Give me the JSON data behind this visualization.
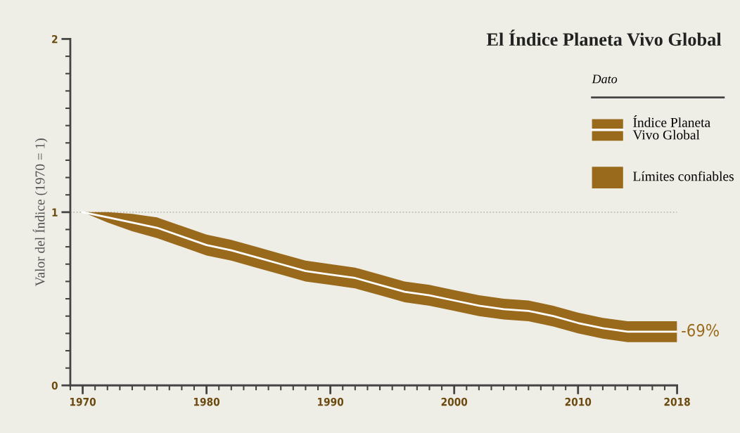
{
  "chart_data": {
    "type": "line",
    "title": "El Índice Planeta Vivo Global",
    "ylabel": "Valor del Índice (1970 = 1)",
    "legend_title": "Dato",
    "legend": "right",
    "x": [
      1970,
      1972,
      1974,
      1976,
      1978,
      1980,
      1982,
      1984,
      1986,
      1988,
      1990,
      1992,
      1994,
      1996,
      1998,
      2000,
      2002,
      2004,
      2006,
      2008,
      2010,
      2012,
      2014,
      2016,
      2018
    ],
    "series": [
      {
        "name": "Índice Planeta Vivo Global",
        "color": "#ffffff",
        "values": [
          1.0,
          0.97,
          0.94,
          0.91,
          0.86,
          0.81,
          0.78,
          0.74,
          0.7,
          0.66,
          0.64,
          0.62,
          0.58,
          0.54,
          0.52,
          0.49,
          0.46,
          0.44,
          0.43,
          0.4,
          0.36,
          0.33,
          0.31,
          0.31,
          0.31
        ],
        "lower": [
          1.0,
          0.94,
          0.89,
          0.85,
          0.8,
          0.75,
          0.72,
          0.68,
          0.64,
          0.6,
          0.58,
          0.56,
          0.52,
          0.48,
          0.46,
          0.43,
          0.4,
          0.38,
          0.37,
          0.34,
          0.3,
          0.27,
          0.25,
          0.25,
          0.25
        ],
        "upper": [
          1.0,
          1.0,
          0.99,
          0.97,
          0.92,
          0.87,
          0.84,
          0.8,
          0.76,
          0.72,
          0.7,
          0.68,
          0.64,
          0.6,
          0.58,
          0.55,
          0.52,
          0.5,
          0.49,
          0.46,
          0.42,
          0.39,
          0.37,
          0.37,
          0.37
        ]
      },
      {
        "type": "area",
        "name": "Límites confiables",
        "color": "#9a6a1c",
        "values": [
          null,
          null,
          null,
          null,
          null,
          null,
          null,
          null,
          null,
          null,
          null,
          null,
          null,
          null,
          null,
          null,
          null,
          null,
          null,
          null,
          null,
          null,
          null,
          null,
          null
        ]
      }
    ],
    "xlim": [
      1969,
      2018
    ],
    "xticks": [
      1970,
      1980,
      1990,
      2000,
      2010,
      2018
    ],
    "ylim": [
      0,
      2
    ],
    "yticks": [
      0,
      1,
      2
    ],
    "ref_lines": [
      {
        "axis": "y",
        "value": 1,
        "color": "#bbbbbb",
        "line_style": "dotted"
      }
    ],
    "annotations": [
      {
        "text": "-69%",
        "x": 2018,
        "y": 0.31
      }
    ],
    "grid": false
  }
}
